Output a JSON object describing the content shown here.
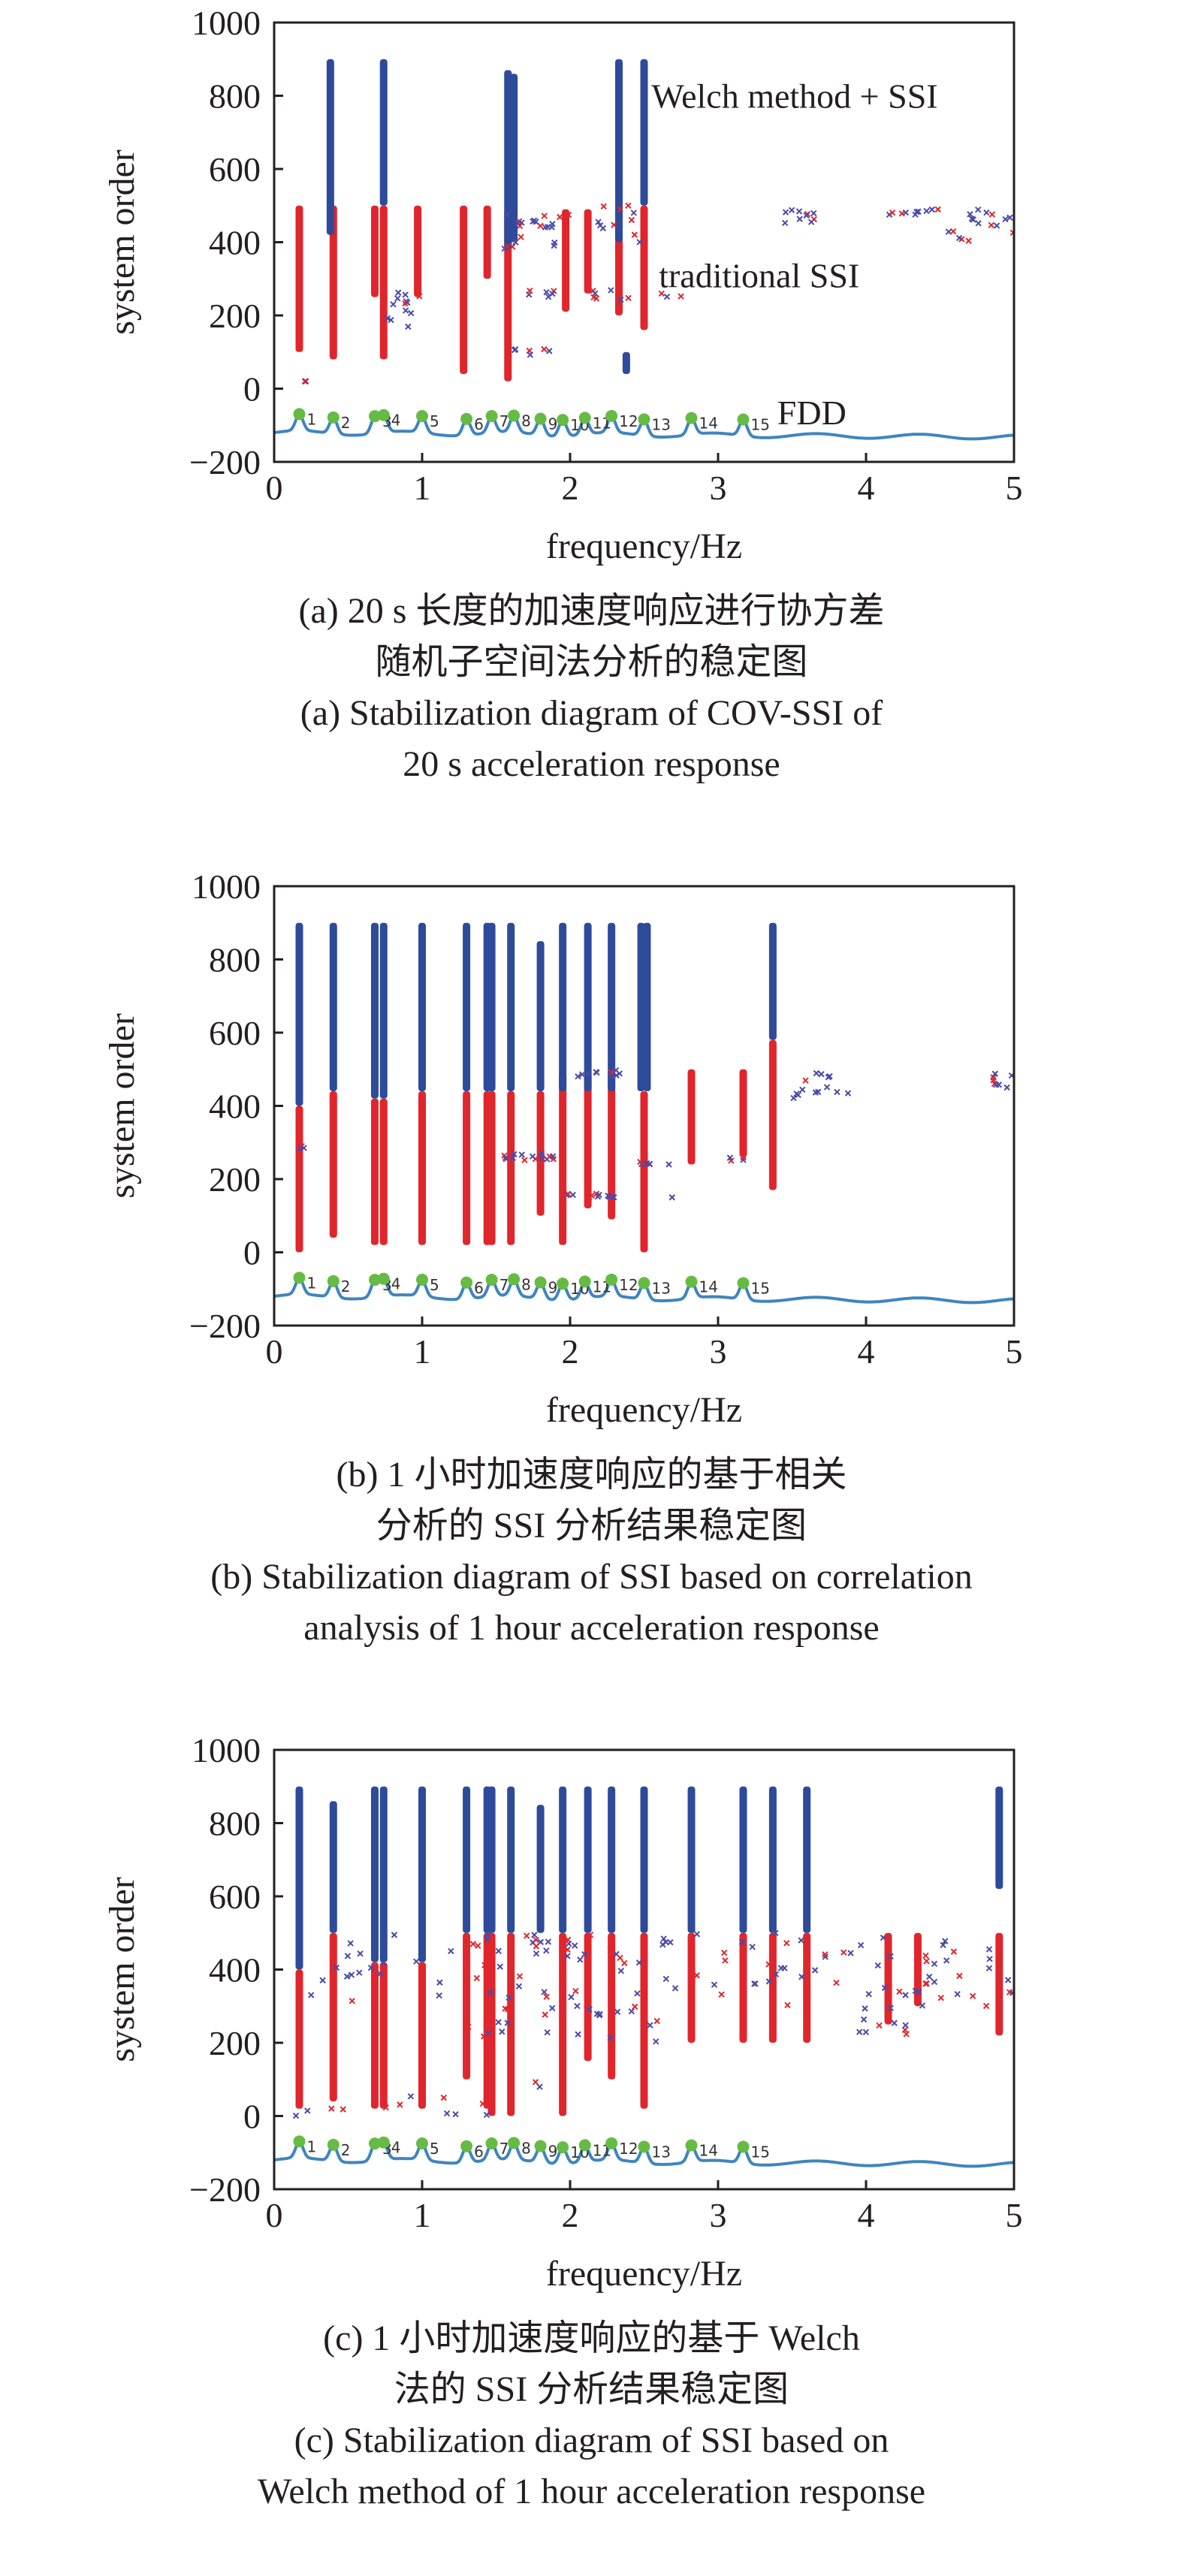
{
  "colors": {
    "stable": "#2e4a9a",
    "unstable": "#e0262c",
    "cross": "#4a4aa8",
    "fdd_curve": "#3f85bf",
    "fdd_peak": "#66bb44",
    "axis": "#231f20"
  },
  "chart_data": [
    {
      "type": "scatter",
      "title": "",
      "xlabel": "frequency/Hz",
      "ylabel": "system order",
      "xlim": [
        0,
        5
      ],
      "ylim": [
        -200,
        1000
      ],
      "xticks": [
        "0",
        "1",
        "2",
        "3",
        "4",
        "5"
      ],
      "yticks": [
        "−200",
        "0",
        "200",
        "400",
        "600",
        "800",
        "1000"
      ],
      "annotations": [
        {
          "text": "Welch method + SSI",
          "x": 2.55,
          "y": 800
        },
        {
          "text": "traditional SSI",
          "x": 2.6,
          "y": 310
        },
        {
          "text": "FDD",
          "x": 3.4,
          "y": -65
        }
      ],
      "fdd_peaks": [
        {
          "x": 0.17,
          "label": "1"
        },
        {
          "x": 0.4,
          "label": "2"
        },
        {
          "x": 0.68,
          "label": "3"
        },
        {
          "x": 0.74,
          "label": "4"
        },
        {
          "x": 1.0,
          "label": "5"
        },
        {
          "x": 1.3,
          "label": "6"
        },
        {
          "x": 1.47,
          "label": "7"
        },
        {
          "x": 1.62,
          "label": "8"
        },
        {
          "x": 1.8,
          "label": "9"
        },
        {
          "x": 1.95,
          "label": "10"
        },
        {
          "x": 2.1,
          "label": "11"
        },
        {
          "x": 2.28,
          "label": "12"
        },
        {
          "x": 2.5,
          "label": "13"
        },
        {
          "x": 2.82,
          "label": "14"
        },
        {
          "x": 3.17,
          "label": "15"
        }
      ],
      "stable_lines": [
        {
          "x": 0.38,
          "y0": 420,
          "y1": 900
        },
        {
          "x": 0.74,
          "y0": 500,
          "y1": 900
        },
        {
          "x": 1.58,
          "y0": 380,
          "y1": 870
        },
        {
          "x": 2.33,
          "y0": 400,
          "y1": 900
        },
        {
          "x": 2.5,
          "y0": 500,
          "y1": 900
        },
        {
          "x": 1.62,
          "y0": 400,
          "y1": 860
        },
        {
          "x": 2.38,
          "y0": 40,
          "y1": 100
        }
      ],
      "unstable_lines": [
        {
          "x": 0.17,
          "y0": 100,
          "y1": 500
        },
        {
          "x": 0.4,
          "y0": 80,
          "y1": 500
        },
        {
          "x": 0.68,
          "y0": 250,
          "y1": 500
        },
        {
          "x": 0.74,
          "y0": 80,
          "y1": 500
        },
        {
          "x": 0.97,
          "y0": 250,
          "y1": 500
        },
        {
          "x": 1.28,
          "y0": 40,
          "y1": 500
        },
        {
          "x": 1.44,
          "y0": 300,
          "y1": 500
        },
        {
          "x": 1.58,
          "y0": 20,
          "y1": 490
        },
        {
          "x": 1.97,
          "y0": 210,
          "y1": 490
        },
        {
          "x": 2.12,
          "y0": 260,
          "y1": 490
        },
        {
          "x": 2.33,
          "y0": 200,
          "y1": 490
        },
        {
          "x": 2.5,
          "y0": 160,
          "y1": 500
        }
      ],
      "scatter_segments": [
        {
          "x0": 0.2,
          "x1": 0.25,
          "y0": 20,
          "y1": 20,
          "n": 3
        },
        {
          "x0": 0.8,
          "x1": 1.05,
          "y0": 230,
          "y1": 270,
          "n": 8
        },
        {
          "x0": 0.75,
          "x1": 0.95,
          "y0": 150,
          "y1": 220,
          "n": 5
        },
        {
          "x0": 1.6,
          "x1": 1.9,
          "y0": 440,
          "y1": 460,
          "n": 12
        },
        {
          "x0": 1.5,
          "x1": 2.5,
          "y0": 380,
          "y1": 500,
          "n": 22
        },
        {
          "x0": 1.7,
          "x1": 2.4,
          "y0": 240,
          "y1": 270,
          "n": 14
        },
        {
          "x0": 1.6,
          "x1": 1.95,
          "y0": 90,
          "y1": 110,
          "n": 6
        },
        {
          "x0": 2.55,
          "x1": 2.75,
          "y0": 250,
          "y1": 260,
          "n": 3
        },
        {
          "x0": 3.45,
          "x1": 3.65,
          "y0": 440,
          "y1": 490,
          "n": 10
        },
        {
          "x0": 4.1,
          "x1": 4.5,
          "y0": 470,
          "y1": 490,
          "n": 10
        },
        {
          "x0": 4.5,
          "x1": 4.75,
          "y0": 400,
          "y1": 430,
          "n": 5
        },
        {
          "x0": 4.7,
          "x1": 5.0,
          "y0": 420,
          "y1": 490,
          "n": 12
        }
      ],
      "caption_lines": [
        "(a) 20 s 长度的加速度响应进行协方差",
        "随机子空间法分析的稳定图",
        "(a) Stabilization diagram of COV-SSI of",
        "20 s acceleration response"
      ]
    },
    {
      "type": "scatter",
      "title": "",
      "xlabel": "frequency/Hz",
      "ylabel": "system order",
      "xlim": [
        0,
        5
      ],
      "ylim": [
        -200,
        1000
      ],
      "xticks": [
        "0",
        "1",
        "2",
        "3",
        "4",
        "5"
      ],
      "yticks": [
        "−200",
        "0",
        "200",
        "400",
        "600",
        "800",
        "1000"
      ],
      "annotations": [],
      "fdd_peaks": [
        {
          "x": 0.17,
          "label": "1"
        },
        {
          "x": 0.4,
          "label": "2"
        },
        {
          "x": 0.68,
          "label": "3"
        },
        {
          "x": 0.74,
          "label": "4"
        },
        {
          "x": 1.0,
          "label": "5"
        },
        {
          "x": 1.3,
          "label": "6"
        },
        {
          "x": 1.47,
          "label": "7"
        },
        {
          "x": 1.62,
          "label": "8"
        },
        {
          "x": 1.8,
          "label": "9"
        },
        {
          "x": 1.95,
          "label": "10"
        },
        {
          "x": 2.1,
          "label": "11"
        },
        {
          "x": 2.28,
          "label": "12"
        },
        {
          "x": 2.5,
          "label": "13"
        },
        {
          "x": 2.82,
          "label": "14"
        },
        {
          "x": 3.17,
          "label": "15"
        }
      ],
      "stable_lines": [
        {
          "x": 0.17,
          "y0": 400,
          "y1": 900
        },
        {
          "x": 0.4,
          "y0": 440,
          "y1": 900
        },
        {
          "x": 0.68,
          "y0": 420,
          "y1": 900
        },
        {
          "x": 0.74,
          "y0": 420,
          "y1": 900
        },
        {
          "x": 1.0,
          "y0": 440,
          "y1": 900
        },
        {
          "x": 1.3,
          "y0": 440,
          "y1": 900
        },
        {
          "x": 1.44,
          "y0": 440,
          "y1": 900
        },
        {
          "x": 1.47,
          "y0": 440,
          "y1": 900
        },
        {
          "x": 1.6,
          "y0": 440,
          "y1": 900
        },
        {
          "x": 1.8,
          "y0": 440,
          "y1": 850
        },
        {
          "x": 1.95,
          "y0": 440,
          "y1": 900
        },
        {
          "x": 2.12,
          "y0": 440,
          "y1": 900
        },
        {
          "x": 2.28,
          "y0": 440,
          "y1": 900
        },
        {
          "x": 2.48,
          "y0": 440,
          "y1": 900
        },
        {
          "x": 2.52,
          "y0": 440,
          "y1": 900
        },
        {
          "x": 3.37,
          "y0": 580,
          "y1": 900
        }
      ],
      "unstable_lines": [
        {
          "x": 0.17,
          "y0": 0,
          "y1": 400
        },
        {
          "x": 0.4,
          "y0": 40,
          "y1": 440
        },
        {
          "x": 0.68,
          "y0": 20,
          "y1": 420
        },
        {
          "x": 0.74,
          "y0": 20,
          "y1": 420
        },
        {
          "x": 1.0,
          "y0": 20,
          "y1": 440
        },
        {
          "x": 1.3,
          "y0": 20,
          "y1": 440
        },
        {
          "x": 1.44,
          "y0": 20,
          "y1": 440
        },
        {
          "x": 1.47,
          "y0": 20,
          "y1": 440
        },
        {
          "x": 1.6,
          "y0": 20,
          "y1": 440
        },
        {
          "x": 1.8,
          "y0": 100,
          "y1": 440
        },
        {
          "x": 1.95,
          "y0": 20,
          "y1": 490
        },
        {
          "x": 2.12,
          "y0": 120,
          "y1": 490
        },
        {
          "x": 2.28,
          "y0": 90,
          "y1": 490
        },
        {
          "x": 2.5,
          "y0": 0,
          "y1": 440
        },
        {
          "x": 2.82,
          "y0": 240,
          "y1": 500
        },
        {
          "x": 3.17,
          "y0": 260,
          "y1": 500
        },
        {
          "x": 3.37,
          "y0": 170,
          "y1": 580
        }
      ],
      "scatter_segments": [
        {
          "x0": 0.17,
          "x1": 0.22,
          "y0": 280,
          "y1": 290,
          "n": 3
        },
        {
          "x0": 1.48,
          "x1": 1.9,
          "y0": 250,
          "y1": 270,
          "n": 16
        },
        {
          "x0": 1.95,
          "x1": 2.3,
          "y0": 150,
          "y1": 160,
          "n": 14
        },
        {
          "x0": 2.0,
          "x1": 2.35,
          "y0": 480,
          "y1": 500,
          "n": 10
        },
        {
          "x0": 2.4,
          "x1": 2.7,
          "y0": 240,
          "y1": 250,
          "n": 6
        },
        {
          "x0": 3.0,
          "x1": 3.2,
          "y0": 250,
          "y1": 260,
          "n": 4
        },
        {
          "x0": 3.5,
          "x1": 3.9,
          "y0": 420,
          "y1": 490,
          "n": 14
        },
        {
          "x0": 4.85,
          "x1": 5.0,
          "y0": 450,
          "y1": 490,
          "n": 8
        },
        {
          "x0": 2.68,
          "x1": 2.72,
          "y0": 150,
          "y1": 150,
          "n": 1
        }
      ],
      "caption_lines": [
        "(b) 1 小时加速度响应的基于相关",
        "分析的 SSI 分析结果稳定图",
        "(b) Stabilization diagram of SSI based on correlation",
        "analysis of 1 hour acceleration response"
      ]
    },
    {
      "type": "scatter",
      "title": "",
      "xlabel": "frequency/Hz",
      "ylabel": "system order",
      "xlim": [
        0,
        5
      ],
      "ylim": [
        -200,
        1000
      ],
      "xticks": [
        "0",
        "1",
        "2",
        "3",
        "4",
        "5"
      ],
      "yticks": [
        "−200",
        "0",
        "200",
        "400",
        "600",
        "800",
        "1000"
      ],
      "annotations": [],
      "fdd_peaks": [
        {
          "x": 0.17,
          "label": "1"
        },
        {
          "x": 0.4,
          "label": "2"
        },
        {
          "x": 0.68,
          "label": "3"
        },
        {
          "x": 0.74,
          "label": "4"
        },
        {
          "x": 1.0,
          "label": "5"
        },
        {
          "x": 1.3,
          "label": "6"
        },
        {
          "x": 1.47,
          "label": "7"
        },
        {
          "x": 1.62,
          "label": "8"
        },
        {
          "x": 1.8,
          "label": "9"
        },
        {
          "x": 1.95,
          "label": "10"
        },
        {
          "x": 2.1,
          "label": "11"
        },
        {
          "x": 2.28,
          "label": "12"
        },
        {
          "x": 2.5,
          "label": "13"
        },
        {
          "x": 2.82,
          "label": "14"
        },
        {
          "x": 3.17,
          "label": "15"
        }
      ],
      "stable_lines": [
        {
          "x": 0.17,
          "y0": 400,
          "y1": 900
        },
        {
          "x": 0.4,
          "y0": 500,
          "y1": 860
        },
        {
          "x": 0.68,
          "y0": 420,
          "y1": 900
        },
        {
          "x": 0.74,
          "y0": 420,
          "y1": 900
        },
        {
          "x": 1.0,
          "y0": 420,
          "y1": 900
        },
        {
          "x": 1.3,
          "y0": 500,
          "y1": 900
        },
        {
          "x": 1.44,
          "y0": 500,
          "y1": 900
        },
        {
          "x": 1.47,
          "y0": 500,
          "y1": 900
        },
        {
          "x": 1.6,
          "y0": 500,
          "y1": 900
        },
        {
          "x": 1.8,
          "y0": 500,
          "y1": 850
        },
        {
          "x": 1.95,
          "y0": 500,
          "y1": 900
        },
        {
          "x": 2.12,
          "y0": 500,
          "y1": 900
        },
        {
          "x": 2.28,
          "y0": 500,
          "y1": 900
        },
        {
          "x": 2.5,
          "y0": 500,
          "y1": 900
        },
        {
          "x": 2.82,
          "y0": 500,
          "y1": 900
        },
        {
          "x": 3.17,
          "y0": 500,
          "y1": 900
        },
        {
          "x": 3.37,
          "y0": 500,
          "y1": 900
        },
        {
          "x": 3.6,
          "y0": 500,
          "y1": 900
        },
        {
          "x": 4.9,
          "y0": 620,
          "y1": 900
        }
      ],
      "unstable_lines": [
        {
          "x": 0.17,
          "y0": 20,
          "y1": 400
        },
        {
          "x": 0.4,
          "y0": 40,
          "y1": 500
        },
        {
          "x": 0.68,
          "y0": 20,
          "y1": 420
        },
        {
          "x": 0.74,
          "y0": 20,
          "y1": 420
        },
        {
          "x": 1.0,
          "y0": 20,
          "y1": 420
        },
        {
          "x": 1.3,
          "y0": 100,
          "y1": 500
        },
        {
          "x": 1.44,
          "y0": 20,
          "y1": 500
        },
        {
          "x": 1.47,
          "y0": 0,
          "y1": 500
        },
        {
          "x": 1.6,
          "y0": 0,
          "y1": 500
        },
        {
          "x": 1.95,
          "y0": 0,
          "y1": 500
        },
        {
          "x": 2.12,
          "y0": 150,
          "y1": 500
        },
        {
          "x": 2.28,
          "y0": 100,
          "y1": 500
        },
        {
          "x": 2.5,
          "y0": 20,
          "y1": 500
        },
        {
          "x": 2.82,
          "y0": 200,
          "y1": 500
        },
        {
          "x": 3.17,
          "y0": 200,
          "y1": 500
        },
        {
          "x": 3.37,
          "y0": 200,
          "y1": 500
        },
        {
          "x": 3.6,
          "y0": 200,
          "y1": 500
        },
        {
          "x": 4.15,
          "y0": 250,
          "y1": 500
        },
        {
          "x": 4.35,
          "y0": 300,
          "y1": 500
        },
        {
          "x": 4.9,
          "y0": 220,
          "y1": 500
        }
      ],
      "scatter_segments": [
        {
          "x0": 1.2,
          "x1": 5.0,
          "y0": 300,
          "y1": 500,
          "n": 110
        },
        {
          "x0": 0.2,
          "x1": 1.2,
          "y0": 300,
          "y1": 500,
          "n": 18
        },
        {
          "x0": 1.3,
          "x1": 2.6,
          "y0": 200,
          "y1": 300,
          "n": 24
        },
        {
          "x0": 0.1,
          "x1": 1.6,
          "y0": 0,
          "y1": 60,
          "n": 12
        },
        {
          "x0": 3.8,
          "x1": 4.3,
          "y0": 220,
          "y1": 300,
          "n": 10
        },
        {
          "x0": 1.75,
          "x1": 1.8,
          "y0": 60,
          "y1": 120,
          "n": 2
        }
      ],
      "caption_lines": [
        "(c) 1 小时加速度响应的基于 Welch",
        "法的 SSI 分析结果稳定图",
        "(c) Stabilization diagram of SSI based on",
        "Welch method of 1 hour acceleration response"
      ]
    }
  ]
}
